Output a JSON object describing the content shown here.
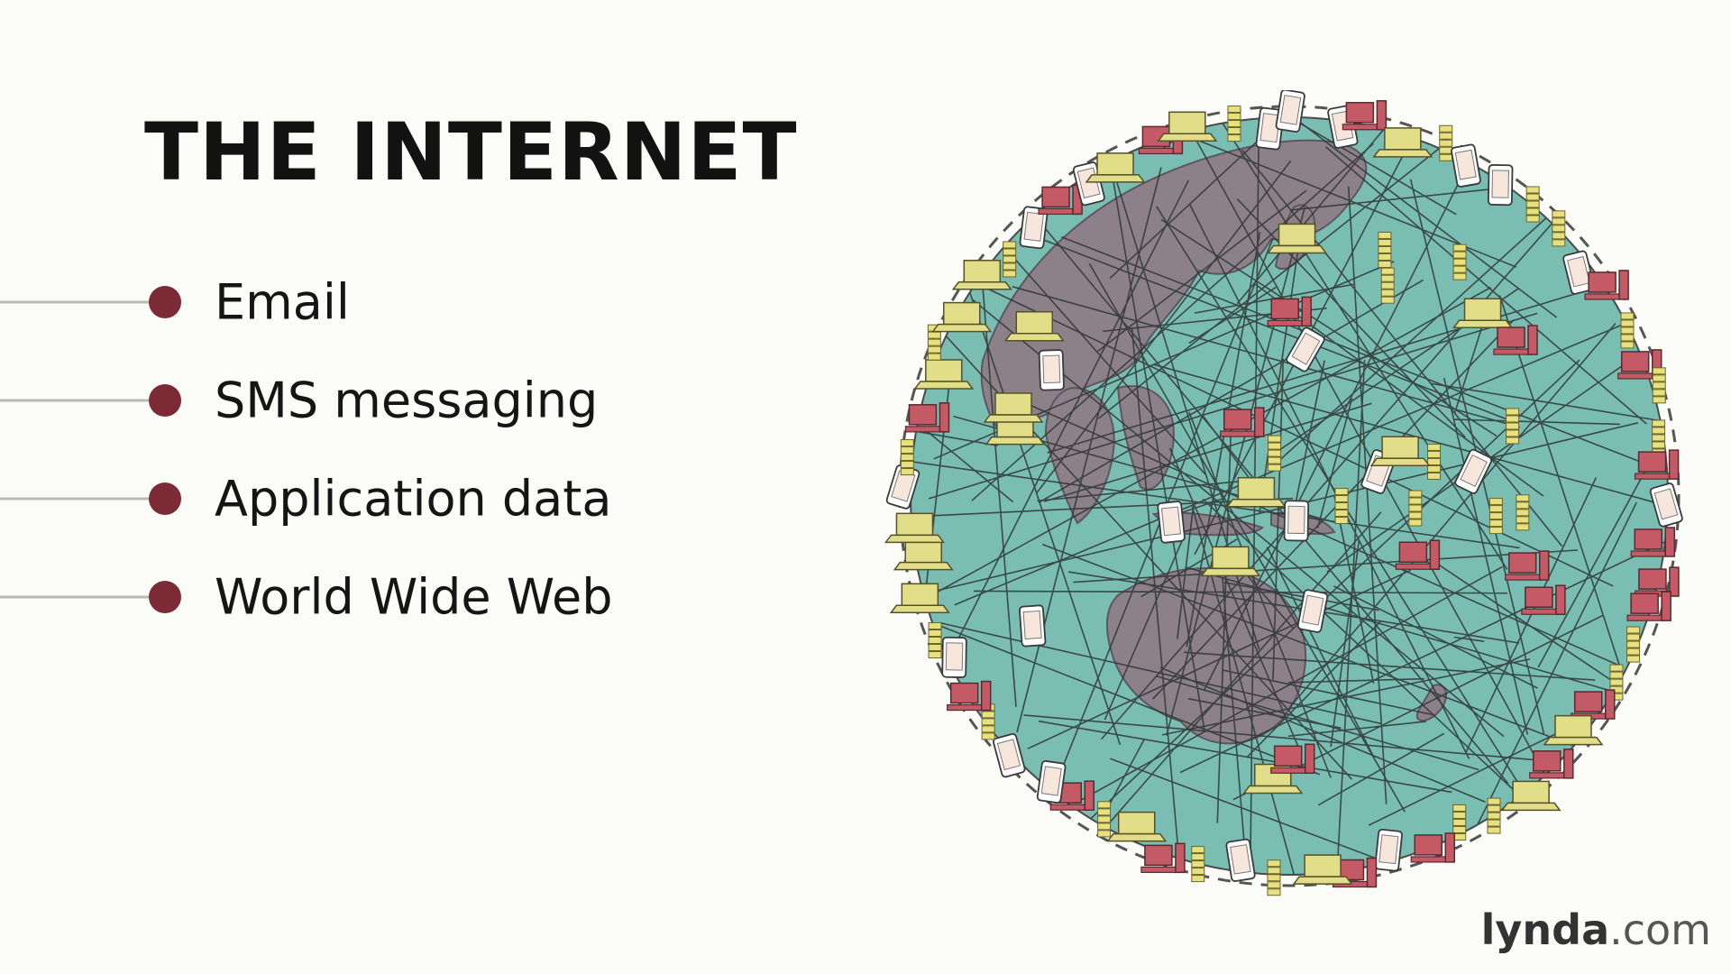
{
  "slide": {
    "title": "THE INTERNET",
    "bullets": [
      {
        "label": "Email"
      },
      {
        "label": "SMS messaging"
      },
      {
        "label": "Application data"
      },
      {
        "label": "World Wide Web"
      }
    ]
  },
  "illustration": {
    "icon": "network-globe-icon",
    "colors": {
      "ocean": "#79bdb3",
      "land": "#8c8089",
      "desktop": "#c35a66",
      "laptop": "#e2dd88",
      "server": "#e8e07c",
      "phone": "#ffffff"
    }
  },
  "branding": {
    "logo_name": "lynda",
    "logo_suffix": ".com"
  },
  "colors": {
    "background": "#fbfcf8",
    "bullet": "#7c2b36",
    "connector": "#b9bab6",
    "title": "#121212"
  }
}
